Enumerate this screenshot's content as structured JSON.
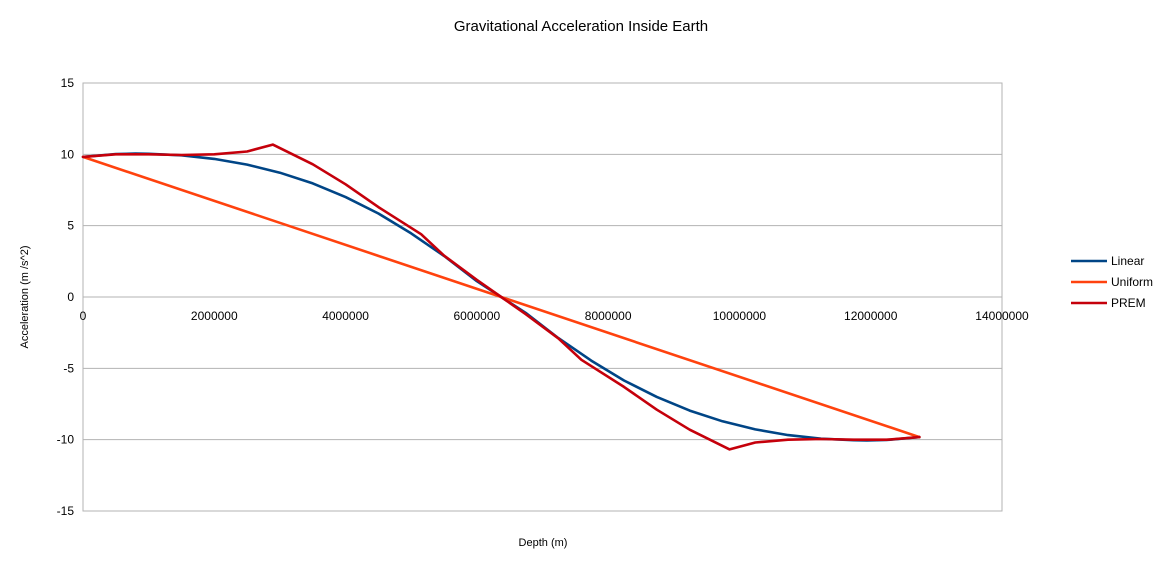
{
  "chart_data": {
    "type": "line",
    "title": "Gravitational Acceleration Inside Earth",
    "xlabel": "Depth (m)",
    "ylabel": "Acceleration (m /s^2)",
    "xlim": [
      0,
      14000000
    ],
    "ylim": [
      -15,
      15
    ],
    "xticks": [
      0,
      2000000,
      4000000,
      6000000,
      8000000,
      10000000,
      12000000,
      14000000
    ],
    "yticks": [
      -15,
      -10,
      -5,
      0,
      5,
      10,
      15
    ],
    "grid": "horizontal",
    "legend": "right",
    "series": [
      {
        "name": "Linear",
        "color": "#004586",
        "x": [
          0,
          500000,
          800000,
          1000000,
          1500000,
          2000000,
          2500000,
          3000000,
          3500000,
          4000000,
          4500000,
          5000000,
          5500000,
          6000000,
          6371000,
          6742000,
          7242000,
          7742000,
          8242000,
          8742000,
          9242000,
          9742000,
          10242000,
          10742000,
          11242000,
          11742000,
          11942000,
          12242000,
          12742000
        ],
        "y": [
          9.82,
          10.02,
          10.05,
          10.04,
          9.93,
          9.68,
          9.28,
          8.71,
          7.96,
          7.0,
          5.85,
          4.46,
          2.88,
          1.11,
          0,
          -1.11,
          -2.88,
          -4.46,
          -5.85,
          -7.0,
          -7.96,
          -8.71,
          -9.28,
          -9.68,
          -9.93,
          -10.04,
          -10.05,
          -10.02,
          -9.82
        ]
      },
      {
        "name": "Uniform",
        "color": "#ff420e",
        "x": [
          0,
          6371000,
          12742000
        ],
        "y": [
          9.82,
          0,
          -9.82
        ]
      },
      {
        "name": "PREM",
        "color": "#c5000b",
        "x": [
          0,
          500000,
          1000000,
          1500000,
          2000000,
          2500000,
          2891000,
          3500000,
          4000000,
          4500000,
          5150000,
          5500000,
          6000000,
          6371000,
          6742000,
          7242000,
          7592000,
          8242000,
          8742000,
          9242000,
          9851000,
          10242000,
          10742000,
          11242000,
          11742000,
          12242000,
          12742000
        ],
        "y": [
          9.82,
          10.0,
          10.0,
          9.95,
          10.0,
          10.2,
          10.68,
          9.3,
          7.9,
          6.3,
          4.4,
          2.9,
          1.2,
          0,
          -1.2,
          -2.9,
          -4.4,
          -6.3,
          -7.9,
          -9.3,
          -10.68,
          -10.2,
          -10.0,
          -9.95,
          -10.0,
          -10.0,
          -9.82
        ]
      }
    ]
  }
}
